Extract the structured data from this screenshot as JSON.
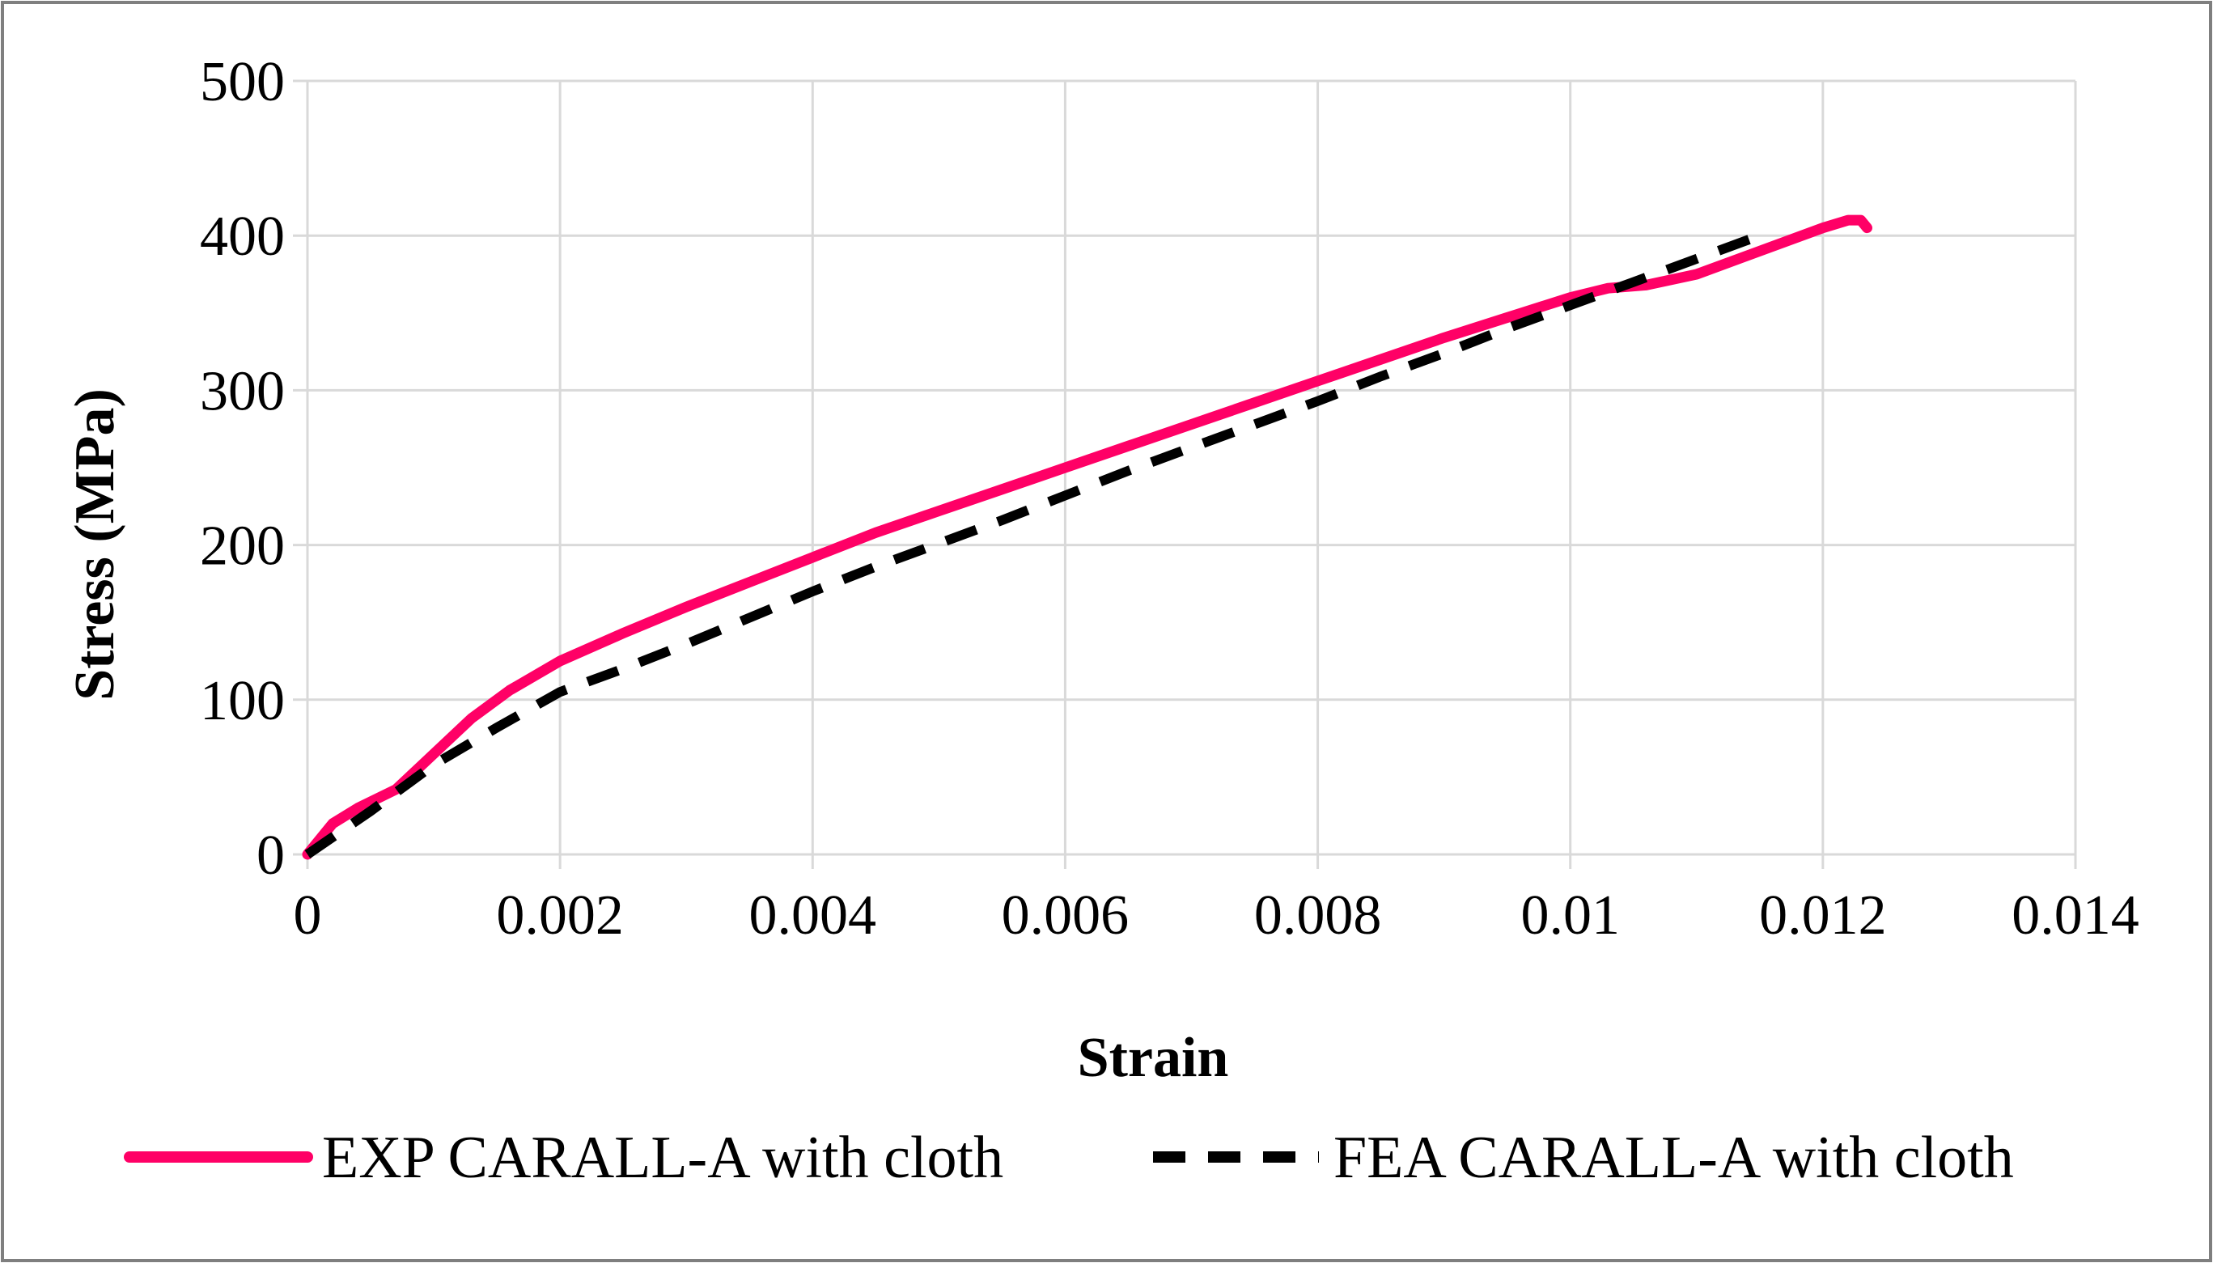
{
  "chart_data": {
    "type": "line",
    "title": "",
    "xlabel": "Strain",
    "ylabel": "Stress (MPa)",
    "xlim": [
      0,
      0.014
    ],
    "ylim": [
      0,
      500
    ],
    "x_ticks": [
      0,
      0.002,
      0.004,
      0.006,
      0.008,
      0.01,
      0.012,
      0.014
    ],
    "x_tick_labels": [
      "0",
      "0.002",
      "0.004",
      "0.006",
      "0.008",
      "0.01",
      "0.012",
      "0.014"
    ],
    "y_ticks": [
      0,
      100,
      200,
      300,
      400,
      500
    ],
    "y_tick_labels": [
      "0",
      "100",
      "200",
      "300",
      "400",
      "500"
    ],
    "grid": true,
    "legend_position": "bottom",
    "series": [
      {
        "name": "EXP CARALL-A with cloth",
        "color": "#ff0066",
        "style": "solid",
        "x": [
          0,
          0.0002,
          0.0004,
          0.0007,
          0.001,
          0.0013,
          0.0016,
          0.002,
          0.0025,
          0.003,
          0.0035,
          0.004,
          0.0045,
          0.005,
          0.0055,
          0.006,
          0.0065,
          0.007,
          0.0075,
          0.008,
          0.0085,
          0.009,
          0.0095,
          0.01,
          0.0103,
          0.0106,
          0.011,
          0.0115,
          0.012,
          0.0122,
          0.0123,
          0.01235
        ],
        "y": [
          0,
          20,
          30,
          42,
          65,
          88,
          106,
          125,
          143,
          160,
          176,
          192,
          208,
          222,
          236,
          250,
          264,
          278,
          292,
          306,
          320,
          334,
          347,
          360,
          366,
          368,
          375,
          390,
          405,
          410,
          410,
          405
        ]
      },
      {
        "name": "FEA CARALL-A with cloth",
        "color": "#000000",
        "style": "dashed",
        "x": [
          0,
          0.0005,
          0.001,
          0.0015,
          0.002,
          0.0025,
          0.003,
          0.0035,
          0.004,
          0.0045,
          0.005,
          0.0055,
          0.006,
          0.0065,
          0.007,
          0.0075,
          0.008,
          0.0085,
          0.009,
          0.0095,
          0.01,
          0.0105,
          0.011,
          0.0115
        ],
        "y": [
          0,
          28,
          58,
          82,
          105,
          120,
          136,
          153,
          170,
          186,
          201,
          216,
          232,
          248,
          263,
          278,
          293,
          309,
          324,
          340,
          355,
          370,
          385,
          400
        ]
      }
    ]
  },
  "colors": {
    "grid": "#d9d9d9",
    "frame": "#7f7f7f"
  }
}
